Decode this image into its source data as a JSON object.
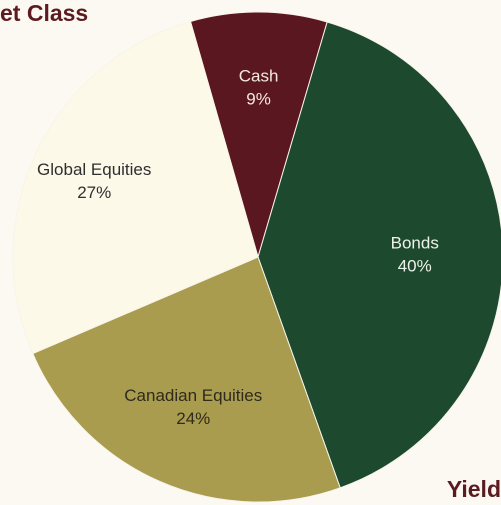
{
  "headings": {
    "left": "et Class",
    "right": "Yield"
  },
  "colors": {
    "heading": "#5c1b20",
    "background": "#fbf9f2"
  },
  "chart_data": {
    "type": "pie",
    "title": "",
    "categories": [
      "Cash",
      "Bonds",
      "Canadian Equities",
      "Global Equities"
    ],
    "values": [
      9,
      40,
      24,
      27
    ],
    "value_labels": [
      "9%",
      "40%",
      "24%",
      "27%"
    ],
    "colors": [
      "#5a1720",
      "#1d4a2e",
      "#aa9c4e",
      "#fcf9e8"
    ],
    "label_colors": [
      "#f4e9dd",
      "#eef2ea",
      "#2e2a1c",
      "#2f2f2f"
    ],
    "start_angle_deg": -16,
    "direction": "clockwise",
    "legend": "none"
  }
}
